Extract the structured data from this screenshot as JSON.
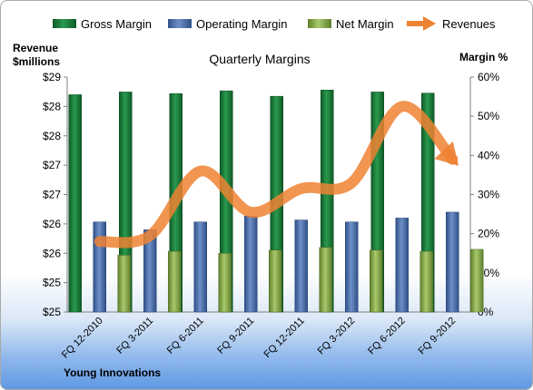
{
  "footer": {
    "company": "Young Innovations"
  },
  "chart_data": {
    "type": "bar",
    "title": "Quarterly Margins",
    "left_axis_label_line1": "Revenue",
    "left_axis_label_line2": "$millions",
    "right_axis_label": "Margin %",
    "categories": [
      "FQ 12-2010",
      "FQ 3-2011",
      "FQ 6-2011",
      "FQ 9-2011",
      "FQ 12-2011",
      "FQ 3-2012",
      "FQ 6-2012",
      "FQ 9-2012"
    ],
    "left_ticks": [
      "$25",
      "$25",
      "$26",
      "$26",
      "$27",
      "$27",
      "$28",
      "$28",
      "$29"
    ],
    "right_ticks": [
      "0%",
      "10%",
      "20%",
      "30%",
      "40%",
      "50%",
      "60%"
    ],
    "right_ylim": [
      0,
      60
    ],
    "left_ylim": [
      25,
      29
    ],
    "series": [
      {
        "name": "Gross Margin",
        "type": "bar",
        "color": "#1e7d3c",
        "values": [
          55.5,
          56.2,
          55.8,
          56.5,
          55.1,
          56.7,
          56.2,
          55.9
        ]
      },
      {
        "name": "Operating Margin",
        "type": "bar",
        "color": "#4f73ad",
        "values": [
          23.0,
          21.0,
          23.0,
          24.5,
          23.5,
          23.0,
          24.0,
          25.5
        ]
      },
      {
        "name": "Net Margin",
        "type": "bar",
        "color": "#8db050",
        "values": [
          14.5,
          15.5,
          15.0,
          15.8,
          16.5,
          15.8,
          15.5,
          16.0
        ]
      },
      {
        "name": "Revenues",
        "type": "line",
        "axis": "left",
        "color": "#ee8233",
        "values": [
          26.2,
          26.3,
          27.4,
          26.7,
          27.1,
          27.2,
          28.5,
          27.6
        ]
      }
    ]
  }
}
